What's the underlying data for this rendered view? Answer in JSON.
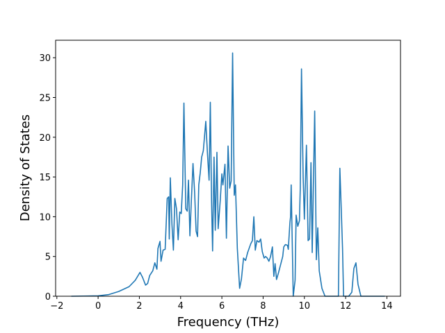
{
  "chart_data": {
    "type": "line",
    "x_label": "Frequency (THz)",
    "y_label": "Density of States",
    "xlim": [
      -2.06,
      14.66
    ],
    "ylim": [
      0,
      32.2
    ],
    "xticks": [
      {
        "value": -2,
        "label": "−2"
      },
      0,
      2,
      4,
      6,
      8,
      10,
      12,
      14
    ],
    "yticks": [
      0,
      5,
      10,
      15,
      20,
      25,
      30
    ],
    "series": [
      {
        "color": "#1f77b4",
        "x": [
          -1.3,
          0,
          0.5,
          1.0,
          1.5,
          1.8,
          2.03,
          2.15,
          2.3,
          2.4,
          2.5,
          2.65,
          2.75,
          2.85,
          2.9,
          3.0,
          3.05,
          3.15,
          3.25,
          3.35,
          3.42,
          3.45,
          3.5,
          3.58,
          3.65,
          3.72,
          3.8,
          3.88,
          3.96,
          4.03,
          4.1,
          4.16,
          4.25,
          4.32,
          4.38,
          4.45,
          4.52,
          4.6,
          4.68,
          4.75,
          4.82,
          4.88,
          4.95,
          5.02,
          5.1,
          5.22,
          5.3,
          5.38,
          5.44,
          5.5,
          5.55,
          5.62,
          5.68,
          5.76,
          5.82,
          5.92,
          6.0,
          6.05,
          6.15,
          6.22,
          6.3,
          6.38,
          6.45,
          6.52,
          6.6,
          6.66,
          6.75,
          6.86,
          6.95,
          7.05,
          7.15,
          7.25,
          7.4,
          7.48,
          7.55,
          7.62,
          7.7,
          7.8,
          7.88,
          7.96,
          8.05,
          8.12,
          8.2,
          8.28,
          8.36,
          8.45,
          8.52,
          8.58,
          8.65,
          8.75,
          8.85,
          8.95,
          9.0,
          9.08,
          9.18,
          9.22,
          9.3,
          9.33,
          9.36,
          9.46,
          9.55,
          9.6,
          9.68,
          9.76,
          9.8,
          9.86,
          9.94,
          10.0,
          10.1,
          10.18,
          10.25,
          10.32,
          10.38,
          10.5,
          10.58,
          10.65,
          10.72,
          10.85,
          11.0,
          11.65,
          11.72,
          11.8,
          11.85,
          11.9,
          12.15,
          12.3,
          12.4,
          12.5,
          12.6,
          12.74,
          13.9
        ],
        "values": [
          0,
          0.05,
          0.2,
          0.6,
          1.2,
          2.0,
          3.0,
          2.4,
          1.4,
          1.6,
          2.6,
          3.2,
          4.2,
          3.4,
          6.0,
          6.9,
          4.4,
          5.8,
          5.9,
          12.3,
          12.5,
          7.2,
          14.9,
          9.0,
          5.8,
          12.3,
          11.0,
          7.1,
          10.6,
          10.4,
          14.0,
          24.3,
          11.0,
          10.7,
          14.6,
          7.6,
          12.0,
          16.7,
          13.0,
          8.2,
          7.5,
          14.0,
          15.5,
          17.5,
          18.3,
          22.0,
          18.0,
          14.6,
          24.4,
          12.0,
          5.7,
          17.5,
          8.3,
          18.1,
          8.5,
          12.0,
          15.4,
          14.0,
          16.6,
          7.3,
          18.9,
          13.6,
          14.5,
          30.6,
          12.7,
          14.0,
          6.0,
          1.0,
          2.2,
          4.8,
          4.5,
          5.5,
          6.6,
          7.0,
          10.0,
          5.8,
          7.0,
          6.8,
          7.2,
          5.6,
          4.8,
          5.0,
          4.8,
          4.4,
          5.0,
          6.2,
          2.5,
          4.1,
          2.1,
          3.0,
          4.0,
          5.0,
          6.2,
          6.5,
          6.4,
          5.9,
          9.3,
          10.0,
          14.0,
          0,
          2.0,
          10.2,
          8.8,
          9.5,
          13.5,
          28.6,
          15.0,
          9.7,
          19.0,
          7.0,
          7.2,
          16.8,
          5.5,
          23.3,
          4.6,
          8.6,
          3.2,
          1.0,
          0,
          0,
          16.1,
          10.0,
          6.0,
          0,
          0,
          0.5,
          3.5,
          4.2,
          1.5,
          0,
          0
        ]
      }
    ]
  }
}
